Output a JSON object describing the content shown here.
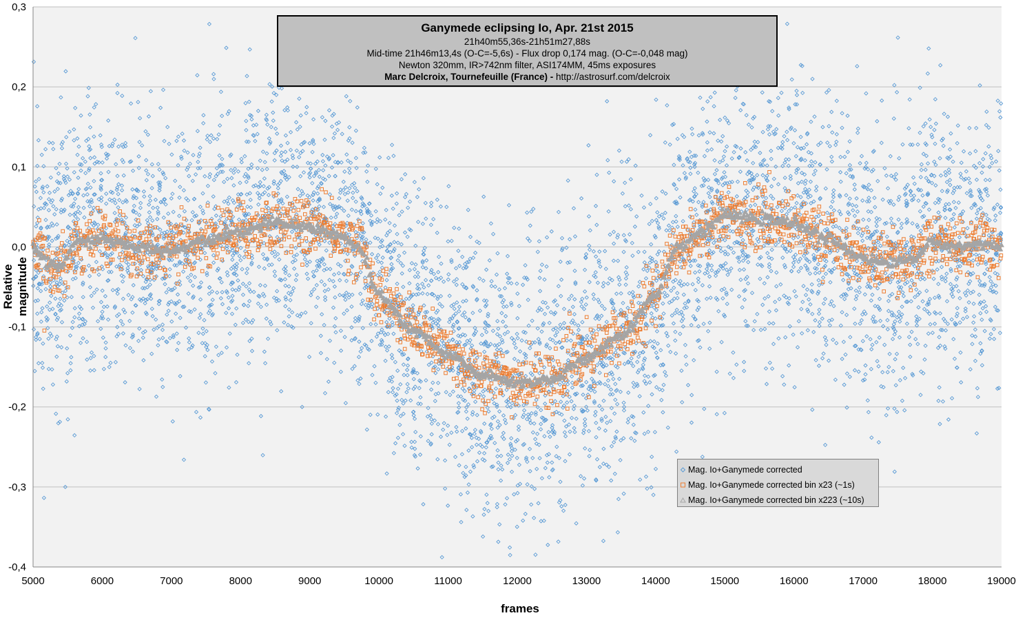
{
  "chart_data": {
    "type": "scatter",
    "title": "Ganymede eclipsing Io, Apr. 21st 2015",
    "subtitle_lines": [
      "21h40m55,36s-21h51m27,88s",
      "Mid-time 21h46m13,4s (O-C=-5,6s) - Flux drop 0,174 mag. (O-C=-0,048 mag)",
      "Newton 320mm, IR>742nm filter, ASI174MM, 45ms exposures"
    ],
    "credit": {
      "author": "Marc Delcroix, Tournefeuille (France) -",
      "url": " http://astrosurf.com/delcroix"
    },
    "xlabel": "frames",
    "ylabel_lines": [
      "Relative",
      "magnitude"
    ],
    "xlim": [
      5000,
      19000
    ],
    "ylim": [
      -0.4,
      0.3
    ],
    "x_ticks": [
      5000,
      6000,
      7000,
      8000,
      9000,
      10000,
      11000,
      12000,
      13000,
      14000,
      15000,
      16000,
      17000,
      18000,
      19000
    ],
    "y_ticks": [
      -0.4,
      -0.3,
      -0.2,
      -0.1,
      0.0,
      0.1,
      0.2,
      0.3
    ],
    "y_tick_labels": [
      "-0,4",
      "-0,3",
      "-0,2",
      "-0,1",
      "0,0",
      "0,1",
      "0,2",
      "0,3"
    ],
    "grid": "horizontal",
    "legend_position": "bottom-right",
    "series": [
      {
        "name": "Mag. Io+Ganymede corrected",
        "marker": "diamond",
        "color": "#5b9bd5",
        "scatter_std": 0.085,
        "points_estimated": 14000
      },
      {
        "name": "Mag. Io+Ganymede corrected bin x23 (~1s)",
        "marker": "square",
        "color": "#ed7d31",
        "scatter_std": 0.018
      },
      {
        "name": "Mag. Io+Ganymede corrected bin x223 (~10s)",
        "marker": "triangle",
        "color": "#a5a5a5",
        "trend_x": [
          5000,
          5200,
          5400,
          5600,
          6000,
          6500,
          7000,
          7500,
          8000,
          8500,
          9000,
          9400,
          9700,
          10000,
          10500,
          11000,
          11500,
          12000,
          12500,
          13000,
          13500,
          14000,
          14300,
          14700,
          15000,
          15500,
          16000,
          16500,
          16900,
          17300,
          17700,
          18000,
          18400,
          18700,
          19000
        ],
        "trend_y": [
          0.0,
          -0.02,
          -0.025,
          0.005,
          0.01,
          0.0,
          -0.005,
          0.01,
          0.02,
          0.03,
          0.025,
          0.015,
          0.0,
          -0.06,
          -0.105,
          -0.135,
          -0.16,
          -0.17,
          -0.165,
          -0.14,
          -0.11,
          -0.06,
          0.0,
          0.02,
          0.04,
          0.035,
          0.03,
          0.01,
          -0.01,
          -0.02,
          -0.015,
          0.005,
          0.0,
          0.005,
          0.0
        ]
      }
    ]
  }
}
